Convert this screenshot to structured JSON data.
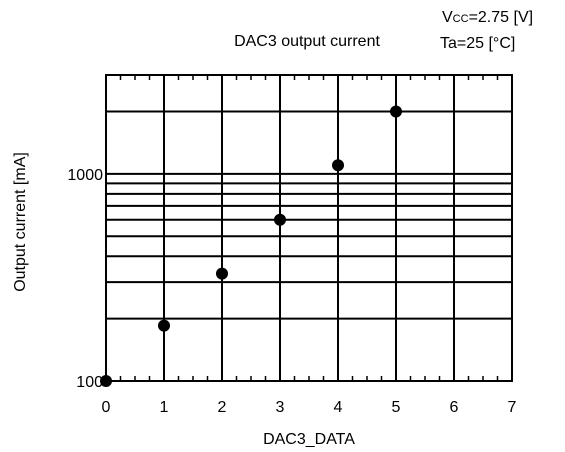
{
  "chart_data": {
    "type": "scatter",
    "title": "DAC3 output current",
    "conditions": {
      "vcc_prefix": "V",
      "vcc_sub": "CC",
      "vcc_value": "=2.75 [V]",
      "ta": "Ta=25 [°C]"
    },
    "xlabel": "DAC3_DATA",
    "ylabel": "Output current [mA]",
    "xlim": [
      0,
      7
    ],
    "ylim": [
      100,
      3000
    ],
    "yscale": "log",
    "grid": true,
    "x_ticks": [
      "0",
      "1",
      "2",
      "3",
      "4",
      "5",
      "6",
      "7"
    ],
    "y_tick_labels": [
      "100",
      "1000"
    ],
    "series": [
      {
        "x": [
          0,
          1,
          2,
          3,
          4,
          5
        ],
        "y": [
          100,
          185,
          330,
          600,
          1100,
          2000
        ]
      }
    ]
  }
}
